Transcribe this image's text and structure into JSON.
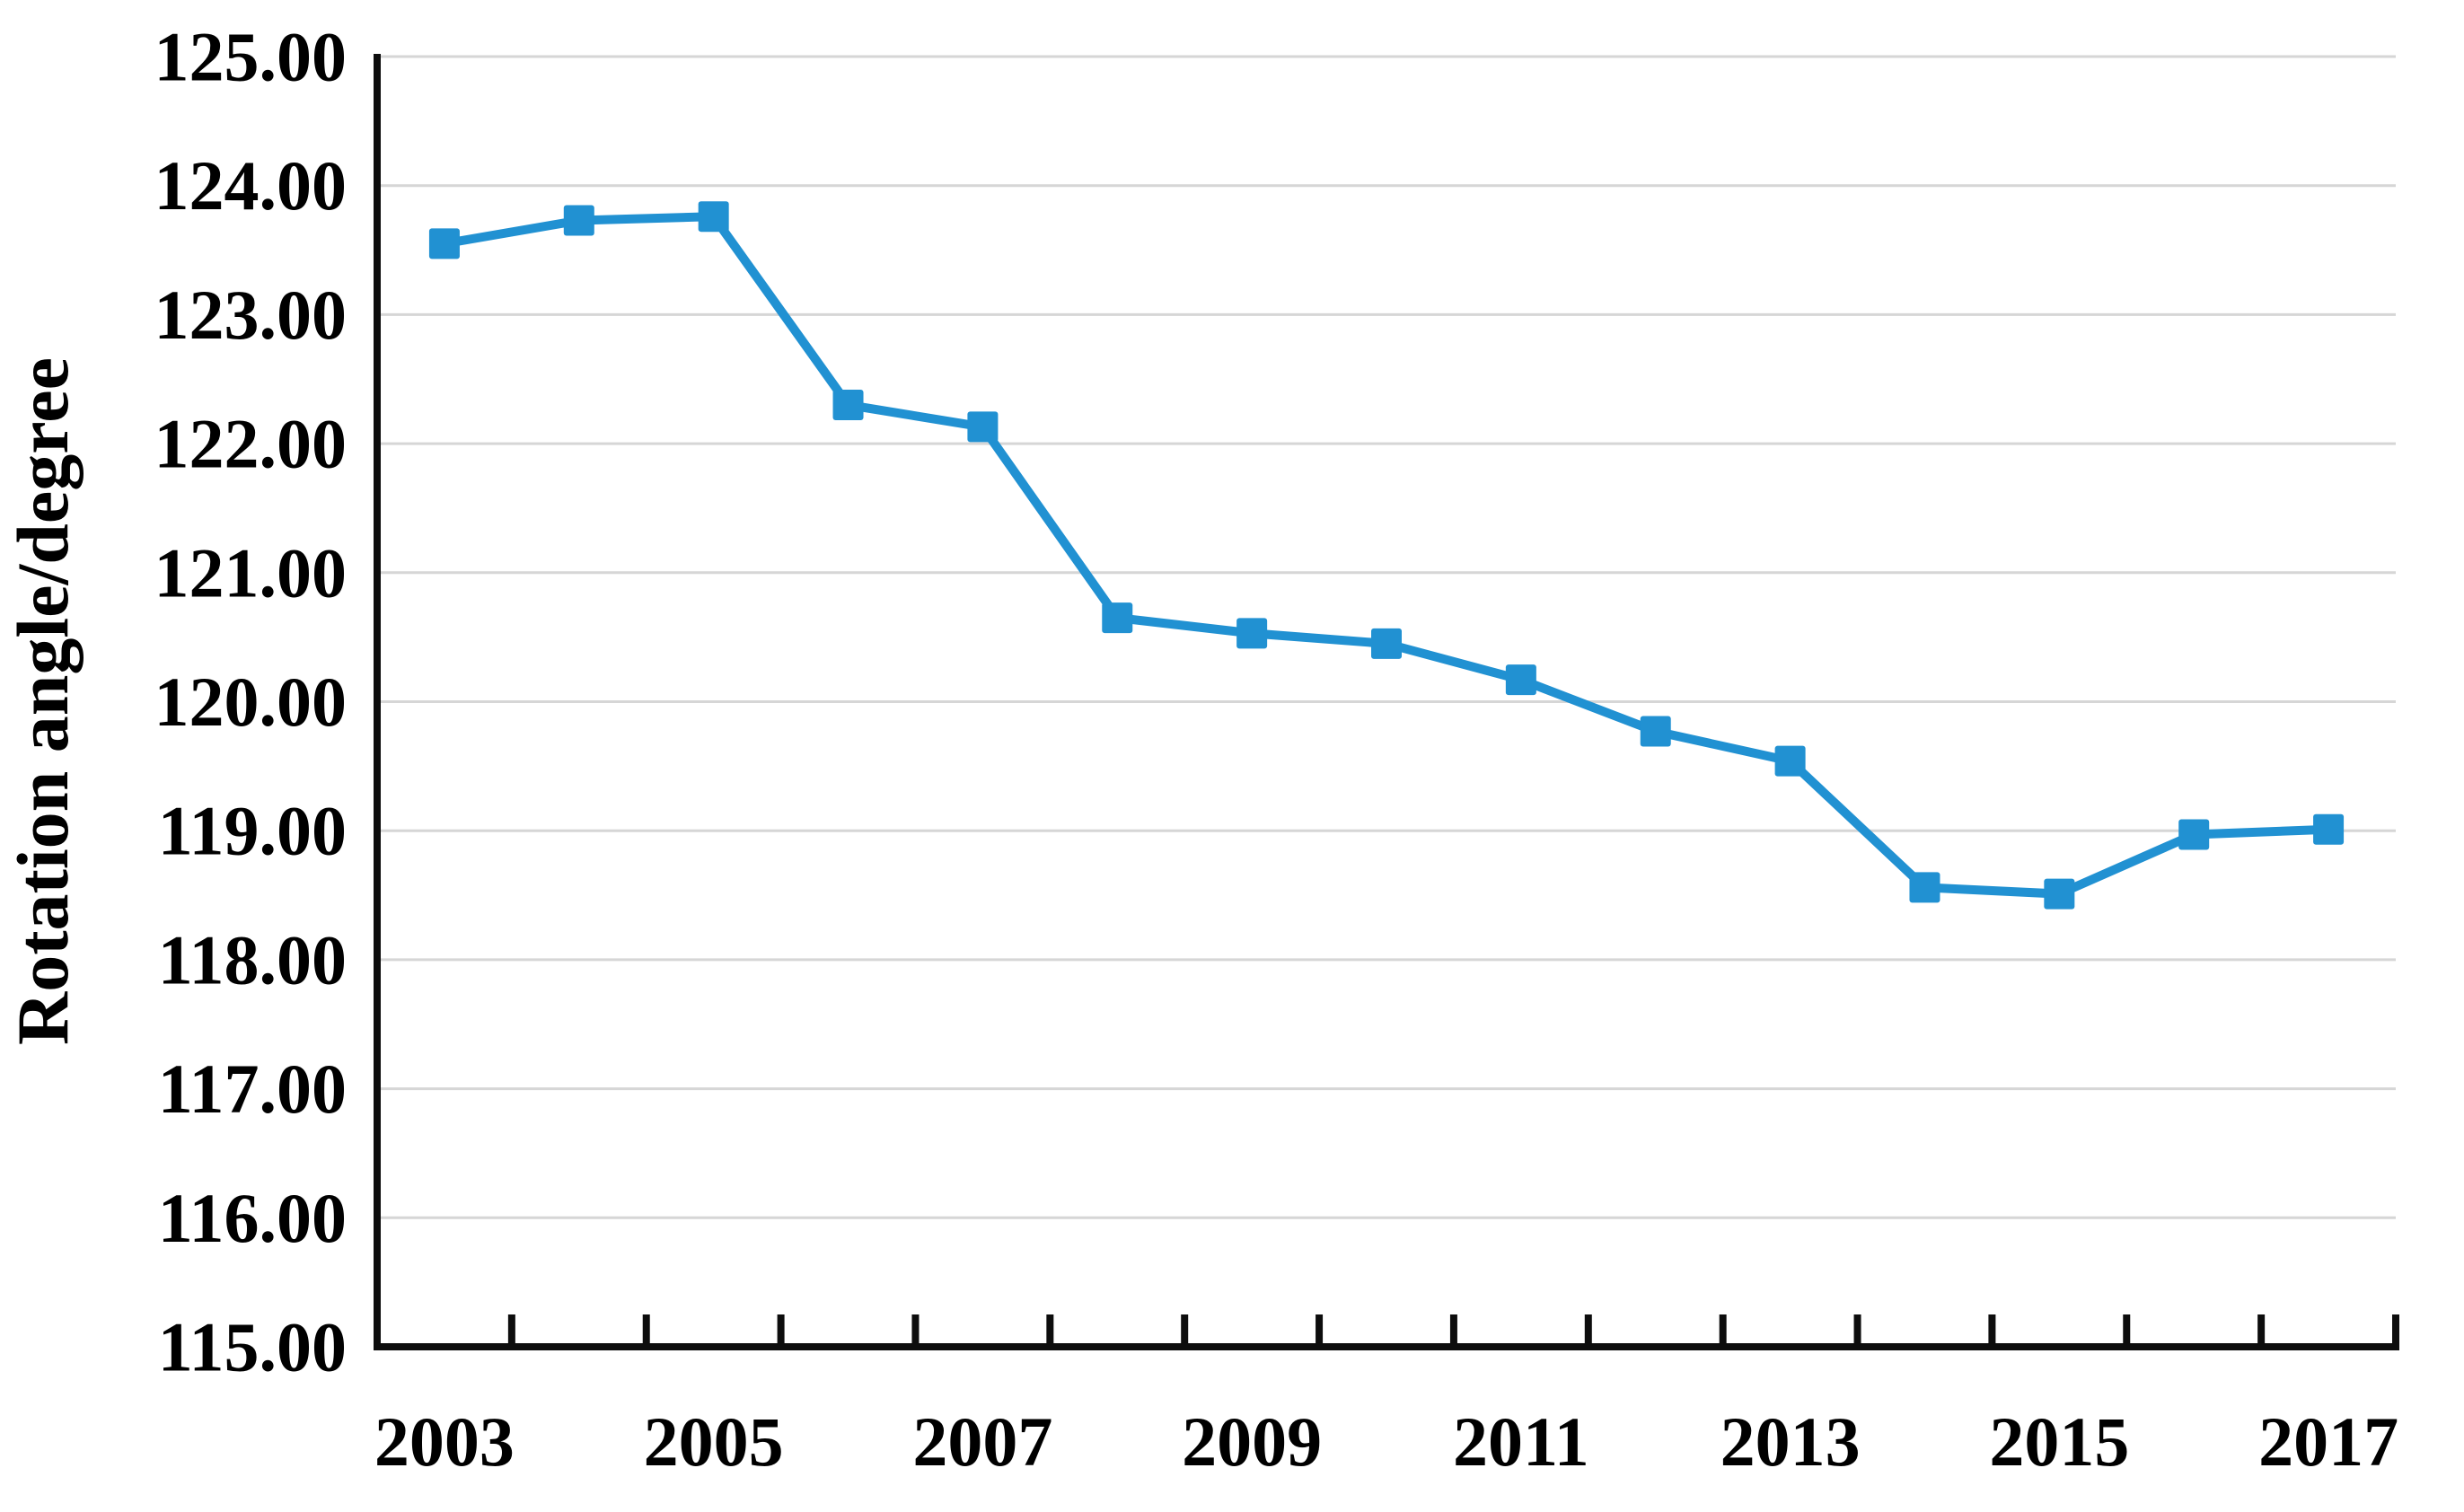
{
  "chart_data": {
    "type": "line",
    "categories": [
      "2003",
      "2004",
      "2005",
      "2006",
      "2007",
      "2008",
      "2009",
      "2010",
      "2011",
      "2012",
      "2013",
      "2014",
      "2015",
      "2016",
      "2017"
    ],
    "series": [
      {
        "values": [
          123.55,
          123.73,
          123.76,
          122.3,
          122.13,
          120.65,
          120.53,
          120.45,
          120.17,
          119.77,
          119.54,
          118.56,
          118.51,
          118.97,
          119.01
        ]
      }
    ],
    "ylabel": "Rotation angle/degree",
    "ylim": [
      115,
      125
    ],
    "y_major_step": 1,
    "y_tick_labels": [
      "115.00",
      "116.00",
      "117.00",
      "118.00",
      "119.00",
      "120.00",
      "121.00",
      "122.00",
      "123.00",
      "124.00",
      "125.00"
    ],
    "x_tick_labels": [
      "2003",
      "2005",
      "2007",
      "2009",
      "2011",
      "2013",
      "2015",
      "2017"
    ],
    "grid": "horizontal",
    "legend": "none",
    "marker": "square",
    "colors": {
      "line": "#2191d2",
      "marker": "#2191d2",
      "grid": "#d6d6d6",
      "axis": "#0d0d0d",
      "text": "#000000"
    }
  }
}
